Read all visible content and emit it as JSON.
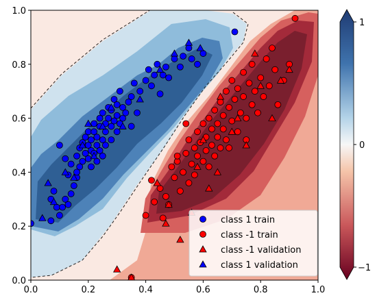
{
  "chart_data": {
    "type": "scatter",
    "title": "",
    "xlabel": "",
    "ylabel": "",
    "xlim": [
      0,
      1
    ],
    "ylim": [
      0,
      1
    ],
    "x_ticks": [
      "0.0",
      "0.2",
      "0.4",
      "0.6",
      "0.8",
      "1.0"
    ],
    "y_ticks": [
      "0.0",
      "0.2",
      "0.4",
      "0.6",
      "0.8",
      "1.0"
    ],
    "legend_position": "bottom-right",
    "background": "contourf decision function, RdBu colormap, dashed zero contour",
    "colorbar": {
      "range": [
        -1,
        1
      ],
      "ticks": [
        "1",
        "0",
        "−1"
      ],
      "colors": {
        "top": "#1f3b73",
        "mid": "#f7f7f7",
        "bottom": "#67001f"
      }
    },
    "series": [
      {
        "name": "class 1 train",
        "marker": "circle",
        "color": "#0000ff",
        "points": [
          [
            0.0,
            0.21
          ],
          [
            0.07,
            0.3
          ],
          [
            0.07,
            0.22
          ],
          [
            0.08,
            0.33
          ],
          [
            0.09,
            0.27
          ],
          [
            0.1,
            0.24
          ],
          [
            0.11,
            0.27
          ],
          [
            0.12,
            0.3
          ],
          [
            0.13,
            0.28
          ],
          [
            0.14,
            0.32
          ],
          [
            0.15,
            0.35
          ],
          [
            0.16,
            0.38
          ],
          [
            0.16,
            0.4
          ],
          [
            0.16,
            0.46
          ],
          [
            0.17,
            0.42
          ],
          [
            0.17,
            0.49
          ],
          [
            0.18,
            0.44
          ],
          [
            0.18,
            0.51
          ],
          [
            0.19,
            0.47
          ],
          [
            0.19,
            0.53
          ],
          [
            0.2,
            0.45
          ],
          [
            0.2,
            0.5
          ],
          [
            0.2,
            0.55
          ],
          [
            0.21,
            0.42
          ],
          [
            0.21,
            0.48
          ],
          [
            0.21,
            0.52
          ],
          [
            0.22,
            0.47
          ],
          [
            0.22,
            0.55
          ],
          [
            0.22,
            0.58
          ],
          [
            0.23,
            0.44
          ],
          [
            0.23,
            0.5
          ],
          [
            0.23,
            0.53
          ],
          [
            0.24,
            0.48
          ],
          [
            0.24,
            0.57
          ],
          [
            0.24,
            0.6
          ],
          [
            0.25,
            0.46
          ],
          [
            0.25,
            0.52
          ],
          [
            0.25,
            0.62
          ],
          [
            0.26,
            0.5
          ],
          [
            0.26,
            0.55
          ],
          [
            0.26,
            0.58
          ],
          [
            0.27,
            0.6
          ],
          [
            0.27,
            0.64
          ],
          [
            0.28,
            0.52
          ],
          [
            0.28,
            0.57
          ],
          [
            0.28,
            0.63
          ],
          [
            0.29,
            0.59
          ],
          [
            0.29,
            0.67
          ],
          [
            0.3,
            0.55
          ],
          [
            0.3,
            0.61
          ],
          [
            0.3,
            0.65
          ],
          [
            0.31,
            0.58
          ],
          [
            0.31,
            0.7
          ],
          [
            0.32,
            0.6
          ],
          [
            0.32,
            0.64
          ],
          [
            0.33,
            0.62
          ],
          [
            0.34,
            0.66
          ],
          [
            0.35,
            0.57
          ],
          [
            0.35,
            0.68
          ],
          [
            0.36,
            0.73
          ],
          [
            0.37,
            0.62
          ],
          [
            0.38,
            0.7
          ],
          [
            0.4,
            0.74
          ],
          [
            0.41,
            0.78
          ],
          [
            0.42,
            0.72
          ],
          [
            0.43,
            0.76
          ],
          [
            0.44,
            0.8
          ],
          [
            0.45,
            0.69
          ],
          [
            0.46,
            0.76
          ],
          [
            0.47,
            0.79
          ],
          [
            0.48,
            0.75
          ],
          [
            0.5,
            0.82
          ],
          [
            0.52,
            0.79
          ],
          [
            0.53,
            0.83
          ],
          [
            0.55,
            0.86
          ],
          [
            0.56,
            0.82
          ],
          [
            0.58,
            0.8
          ],
          [
            0.6,
            0.84
          ],
          [
            0.71,
            0.92
          ],
          [
            0.1,
            0.5
          ],
          [
            0.12,
            0.45
          ],
          [
            0.14,
            0.43
          ],
          [
            0.13,
            0.39
          ]
        ]
      },
      {
        "name": "class -1 train",
        "marker": "circle",
        "color": "#ff0000",
        "points": [
          [
            0.42,
            0.37
          ],
          [
            0.45,
            0.34
          ],
          [
            0.46,
            0.23
          ],
          [
            0.47,
            0.31
          ],
          [
            0.48,
            0.28
          ],
          [
            0.49,
            0.42
          ],
          [
            0.5,
            0.38
          ],
          [
            0.51,
            0.44
          ],
          [
            0.52,
            0.33
          ],
          [
            0.53,
            0.4
          ],
          [
            0.54,
            0.47
          ],
          [
            0.55,
            0.36
          ],
          [
            0.55,
            0.52
          ],
          [
            0.56,
            0.43
          ],
          [
            0.57,
            0.49
          ],
          [
            0.57,
            0.39
          ],
          [
            0.58,
            0.55
          ],
          [
            0.58,
            0.46
          ],
          [
            0.59,
            0.51
          ],
          [
            0.6,
            0.44
          ],
          [
            0.6,
            0.58
          ],
          [
            0.61,
            0.53
          ],
          [
            0.61,
            0.48
          ],
          [
            0.62,
            0.6
          ],
          [
            0.62,
            0.42
          ],
          [
            0.63,
            0.56
          ],
          [
            0.63,
            0.5
          ],
          [
            0.64,
            0.46
          ],
          [
            0.64,
            0.63
          ],
          [
            0.65,
            0.58
          ],
          [
            0.65,
            0.53
          ],
          [
            0.66,
            0.66
          ],
          [
            0.66,
            0.49
          ],
          [
            0.67,
            0.61
          ],
          [
            0.67,
            0.56
          ],
          [
            0.68,
            0.7
          ],
          [
            0.68,
            0.52
          ],
          [
            0.69,
            0.64
          ],
          [
            0.7,
            0.59
          ],
          [
            0.7,
            0.74
          ],
          [
            0.71,
            0.67
          ],
          [
            0.72,
            0.55
          ],
          [
            0.72,
            0.71
          ],
          [
            0.73,
            0.62
          ],
          [
            0.74,
            0.77
          ],
          [
            0.74,
            0.68
          ],
          [
            0.75,
            0.6
          ],
          [
            0.76,
            0.73
          ],
          [
            0.77,
            0.65
          ],
          [
            0.77,
            0.8
          ],
          [
            0.78,
            0.7
          ],
          [
            0.79,
            0.62
          ],
          [
            0.8,
            0.75
          ],
          [
            0.81,
            0.68
          ],
          [
            0.82,
            0.82
          ],
          [
            0.83,
            0.72
          ],
          [
            0.84,
            0.86
          ],
          [
            0.85,
            0.78
          ],
          [
            0.86,
            0.65
          ],
          [
            0.88,
            0.74
          ],
          [
            0.9,
            0.8
          ],
          [
            0.92,
            0.97
          ],
          [
            0.4,
            0.24
          ],
          [
            0.43,
            0.29
          ],
          [
            0.35,
            0.01
          ],
          [
            0.51,
            0.46
          ],
          [
            0.54,
            0.58
          ],
          [
            0.69,
            0.49
          ],
          [
            0.75,
            0.52
          ]
        ]
      },
      {
        "name": "class -1 validation",
        "marker": "triangle",
        "color": "#ff0000",
        "points": [
          [
            0.3,
            0.04
          ],
          [
            0.35,
            0.01
          ],
          [
            0.44,
            0.36
          ],
          [
            0.47,
            0.21
          ],
          [
            0.48,
            0.28
          ],
          [
            0.52,
            0.15
          ],
          [
            0.56,
            0.25
          ],
          [
            0.58,
            0.42
          ],
          [
            0.6,
            0.52
          ],
          [
            0.65,
            0.4
          ],
          [
            0.7,
            0.55
          ],
          [
            0.72,
            0.6
          ],
          [
            0.75,
            0.5
          ],
          [
            0.8,
            0.72
          ],
          [
            0.84,
            0.6
          ],
          [
            0.87,
            0.74
          ],
          [
            0.78,
            0.84
          ],
          [
            0.66,
            0.68
          ],
          [
            0.62,
            0.34
          ],
          [
            0.9,
            0.78
          ]
        ]
      },
      {
        "name": "class 1 validation",
        "marker": "triangle",
        "color": "#0000ff",
        "points": [
          [
            0.04,
            0.23
          ],
          [
            0.06,
            0.36
          ],
          [
            0.08,
            0.29
          ],
          [
            0.12,
            0.4
          ],
          [
            0.18,
            0.5
          ],
          [
            0.2,
            0.58
          ],
          [
            0.25,
            0.57
          ],
          [
            0.28,
            0.64
          ],
          [
            0.32,
            0.57
          ],
          [
            0.38,
            0.67
          ],
          [
            0.45,
            0.78
          ],
          [
            0.5,
            0.84
          ],
          [
            0.55,
            0.88
          ],
          [
            0.59,
            0.86
          ],
          [
            0.15,
            0.38
          ],
          [
            0.22,
            0.46
          ]
        ]
      }
    ]
  }
}
